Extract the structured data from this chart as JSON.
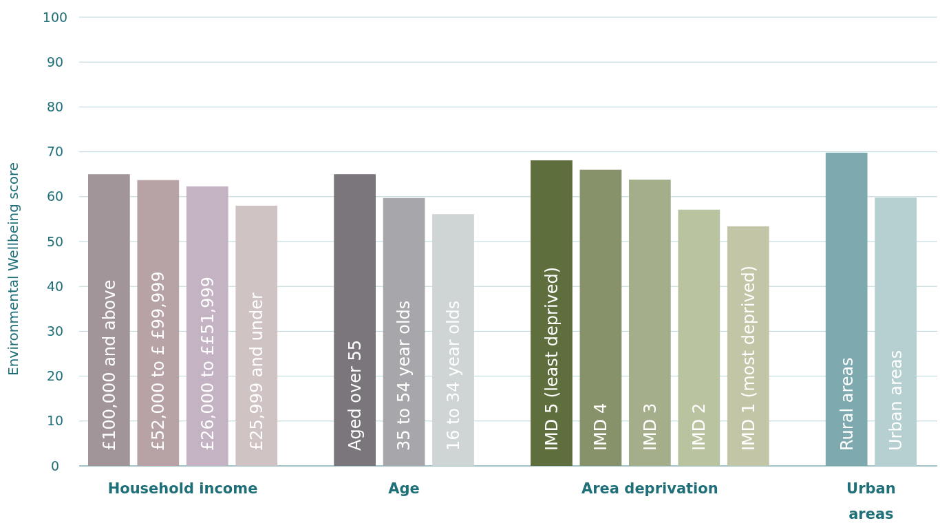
{
  "chart_data": {
    "type": "bar",
    "ylabel": "Environmental Wellbeing score",
    "categories": [
      "£100,000 and above",
      "£52,000 to £ £99,999",
      "£26,000 to ££51,999",
      "£25,999 and under",
      null,
      "Aged over 55",
      "35 to 54  year olds",
      "16 to 34 year olds",
      null,
      "IMD 5 (least deprived)",
      "IMD 4",
      "IMD 3",
      "IMD 2",
      "IMD 1 (most deprived)",
      null,
      "Rural areas",
      "Urban areas"
    ],
    "values": [
      65.0,
      63.7,
      62.3,
      58.0,
      null,
      65.0,
      59.7,
      56.1,
      null,
      68.1,
      66.0,
      63.8,
      57.1,
      53.4,
      null,
      69.8,
      59.8
    ],
    "colors": [
      "#a29599",
      "#b7a3a6",
      "#c4b3c2",
      "#d0c3c3",
      null,
      "#7b767c",
      "#a7a6aa",
      "#cfd4d4",
      null,
      "#5f6e3d",
      "#87916a",
      "#a4ae8b",
      "#bac3a0",
      "#c2c6a7",
      null,
      "#7ea9ae",
      "#b6d0d1"
    ],
    "annotations": [
      "Household income",
      "Age",
      "Area deprivation",
      "Urban areas"
    ],
    "ylim": [
      0,
      100
    ],
    "yticks": [
      0,
      10,
      20,
      30,
      40,
      50,
      60,
      70,
      80,
      90,
      100
    ],
    "grid": "y"
  }
}
